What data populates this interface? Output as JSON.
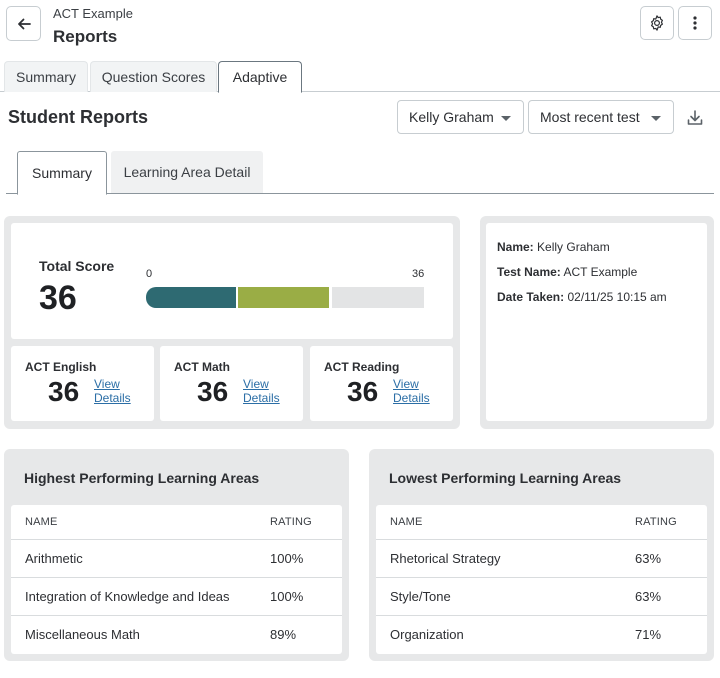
{
  "header": {
    "breadcrumb": "ACT Example",
    "title": "Reports"
  },
  "top_tabs": [
    {
      "label": "Summary"
    },
    {
      "label": "Question Scores"
    },
    {
      "label": "Adaptive"
    }
  ],
  "student_reports": {
    "title": "Student Reports",
    "student_select": "Kelly Graham",
    "test_select": "Most recent test"
  },
  "sub_tabs": [
    {
      "label": "Summary"
    },
    {
      "label": "Learning Area Detail"
    }
  ],
  "total_score": {
    "label": "Total Score",
    "value": "36",
    "scale_min": "0",
    "scale_max": "36"
  },
  "subject_scores": [
    {
      "label": "ACT English",
      "value": "36",
      "link": "View Details"
    },
    {
      "label": "ACT Math",
      "value": "36",
      "link": "View Details"
    },
    {
      "label": "ACT Reading",
      "value": "36",
      "link": "View Details"
    }
  ],
  "info": {
    "name_label": "Name:",
    "name_value": "Kelly Graham",
    "test_label": "Test Name:",
    "test_value": "ACT Example",
    "date_label": "Date Taken:",
    "date_value": "02/11/25 10:15 am"
  },
  "highest": {
    "title": "Highest Performing Learning Areas",
    "col_name": "NAME",
    "col_rating": "RATING",
    "rows": [
      {
        "name": "Arithmetic",
        "rating": "100%"
      },
      {
        "name": "Integration of Knowledge and Ideas",
        "rating": "100%"
      },
      {
        "name": "Miscellaneous Math",
        "rating": "89%"
      }
    ]
  },
  "lowest": {
    "title": "Lowest Performing Learning Areas",
    "col_name": "NAME",
    "col_rating": "RATING",
    "rows": [
      {
        "name": "Rhetorical Strategy",
        "rating": "63%"
      },
      {
        "name": "Style/Tone",
        "rating": "63%"
      },
      {
        "name": "Organization",
        "rating": "71%"
      }
    ]
  },
  "colors": {
    "bar_segment_1": "#2e6a72",
    "bar_segment_2": "#9aad45",
    "bar_segment_3": "#e3e4e5",
    "link": "#2b6ea6"
  }
}
